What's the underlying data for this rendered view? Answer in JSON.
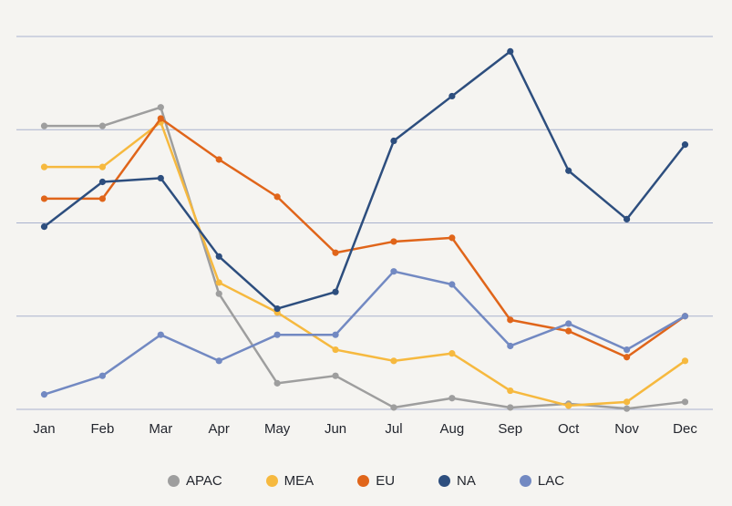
{
  "chart_data": {
    "type": "line",
    "title": "",
    "xlabel": "",
    "ylabel": "",
    "categories": [
      "Jan",
      "Feb",
      "Mar",
      "Apr",
      "May",
      "Jun",
      "Jul",
      "Aug",
      "Sep",
      "Oct",
      "Nov",
      "Dec"
    ],
    "series": [
      {
        "name": "APAC",
        "color": "#9e9e9e",
        "values": [
          76,
          76,
          81,
          31,
          7,
          9,
          0.5,
          3,
          0.5,
          1.5,
          0.2,
          2
        ]
      },
      {
        "name": "MEA",
        "color": "#f6b93f",
        "values": [
          65,
          65,
          77,
          34,
          26,
          16,
          13,
          15,
          5,
          1,
          2,
          13
        ]
      },
      {
        "name": "EU",
        "color": "#e0651a",
        "values": [
          56.5,
          56.5,
          78,
          67,
          57,
          42,
          45,
          46,
          24,
          21,
          14,
          25
        ]
      },
      {
        "name": "NA",
        "color": "#2d4e7e",
        "values": [
          49,
          61,
          62,
          41,
          27,
          31.5,
          72,
          84,
          96,
          64,
          51,
          71
        ]
      },
      {
        "name": "LAC",
        "color": "#7289c2",
        "values": [
          4,
          9,
          20,
          13,
          20,
          20,
          37,
          33.5,
          17,
          23,
          16,
          25
        ]
      }
    ],
    "y_axis": {
      "estimated_scale": true,
      "tick_labels_visible": false,
      "gridline_values": [
        0,
        25,
        50,
        75,
        100
      ],
      "ylim": [
        0,
        110
      ]
    },
    "grid": "horizontal",
    "legend_position": "bottom",
    "colors": {
      "background": "#f5f4f1",
      "gridline": "#a9b2ce",
      "tick_label": "#23262e"
    }
  }
}
